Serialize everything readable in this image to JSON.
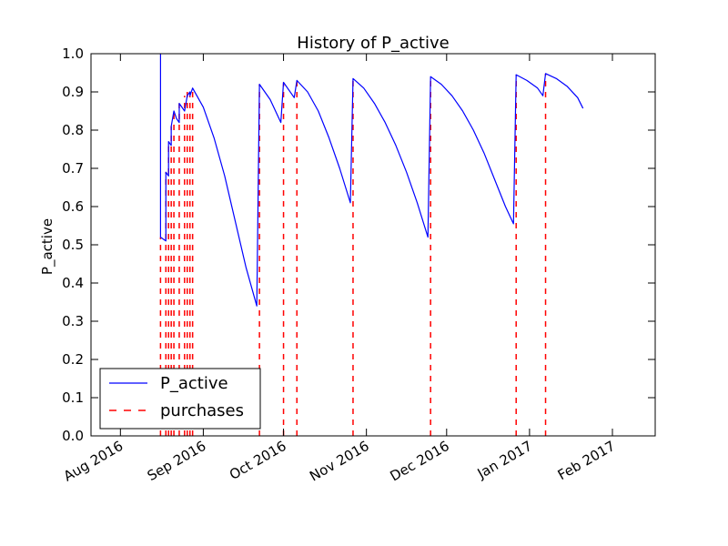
{
  "chart_data": {
    "type": "line",
    "title": "History of P_active",
    "xlabel": "",
    "ylabel": "P_active",
    "ylim": [
      0.0,
      1.0
    ],
    "xlim": [
      "2016-07-21",
      "2017-02-17"
    ],
    "y_ticks": [
      "0.0",
      "0.1",
      "0.2",
      "0.3",
      "0.4",
      "0.5",
      "0.6",
      "0.7",
      "0.8",
      "0.9",
      "1.0"
    ],
    "x_ticks": [
      {
        "date": "2016-08-01",
        "label": "Aug 2016"
      },
      {
        "date": "2016-09-01",
        "label": "Sep 2016"
      },
      {
        "date": "2016-10-01",
        "label": "Oct 2016"
      },
      {
        "date": "2016-11-01",
        "label": "Nov 2016"
      },
      {
        "date": "2016-12-01",
        "label": "Dec 2016"
      },
      {
        "date": "2017-01-01",
        "label": "Jan 2017"
      },
      {
        "date": "2017-02-01",
        "label": "Feb 2017"
      }
    ],
    "grid": false,
    "legend_placement": "lower-left",
    "series": [
      {
        "name": "P_active",
        "style": "solid",
        "color": "#0000ff",
        "points": [
          [
            "2016-08-16",
            1.0
          ],
          [
            "2016-08-16",
            0.52
          ],
          [
            "2016-08-18",
            0.51
          ],
          [
            "2016-08-18",
            0.69
          ],
          [
            "2016-08-19",
            0.68
          ],
          [
            "2016-08-19",
            0.77
          ],
          [
            "2016-08-20",
            0.76
          ],
          [
            "2016-08-20",
            0.81
          ],
          [
            "2016-08-21",
            0.85
          ],
          [
            "2016-08-22",
            0.83
          ],
          [
            "2016-08-23",
            0.82
          ],
          [
            "2016-08-23",
            0.87
          ],
          [
            "2016-08-25",
            0.85
          ],
          [
            "2016-08-26",
            0.89
          ],
          [
            "2016-08-27",
            0.9
          ],
          [
            "2016-08-27",
            0.89
          ],
          [
            "2016-08-28",
            0.91
          ],
          [
            "2016-09-01",
            0.86
          ],
          [
            "2016-09-05",
            0.78
          ],
          [
            "2016-09-09",
            0.68
          ],
          [
            "2016-09-13",
            0.56
          ],
          [
            "2016-09-17",
            0.44
          ],
          [
            "2016-09-21",
            0.34
          ],
          [
            "2016-09-22",
            0.92
          ],
          [
            "2016-09-26",
            0.88
          ],
          [
            "2016-09-30",
            0.82
          ],
          [
            "2016-10-01",
            0.925
          ],
          [
            "2016-10-05",
            0.885
          ],
          [
            "2016-10-06",
            0.93
          ],
          [
            "2016-10-10",
            0.9
          ],
          [
            "2016-10-14",
            0.85
          ],
          [
            "2016-10-18",
            0.78
          ],
          [
            "2016-10-22",
            0.7
          ],
          [
            "2016-10-26",
            0.61
          ],
          [
            "2016-10-27",
            0.935
          ],
          [
            "2016-10-31",
            0.91
          ],
          [
            "2016-11-04",
            0.87
          ],
          [
            "2016-11-08",
            0.82
          ],
          [
            "2016-11-12",
            0.76
          ],
          [
            "2016-11-16",
            0.69
          ],
          [
            "2016-11-20",
            0.61
          ],
          [
            "2016-11-24",
            0.52
          ],
          [
            "2016-11-25",
            0.94
          ],
          [
            "2016-11-29",
            0.92
          ],
          [
            "2016-12-03",
            0.89
          ],
          [
            "2016-12-07",
            0.85
          ],
          [
            "2016-12-11",
            0.8
          ],
          [
            "2016-12-15",
            0.74
          ],
          [
            "2016-12-19",
            0.67
          ],
          [
            "2016-12-23",
            0.6
          ],
          [
            "2016-12-26",
            0.555
          ],
          [
            "2016-12-27",
            0.945
          ],
          [
            "2016-12-31",
            0.93
          ],
          [
            "2017-01-04",
            0.91
          ],
          [
            "2017-01-06",
            0.89
          ],
          [
            "2017-01-07",
            0.948
          ],
          [
            "2017-01-11",
            0.935
          ],
          [
            "2017-01-15",
            0.915
          ],
          [
            "2017-01-19",
            0.885
          ],
          [
            "2017-01-21",
            0.857
          ]
        ]
      },
      {
        "name": "purchases",
        "style": "dashed",
        "color": "#ff0000",
        "dates": [
          "2016-08-16",
          "2016-08-18",
          "2016-08-19",
          "2016-08-20",
          "2016-08-21",
          "2016-08-23",
          "2016-08-25",
          "2016-08-26",
          "2016-08-27",
          "2016-08-28",
          "2016-09-22",
          "2016-10-01",
          "2016-10-06",
          "2016-10-27",
          "2016-11-25",
          "2016-12-27",
          "2017-01-07"
        ],
        "values": [
          0.52,
          0.69,
          0.77,
          0.81,
          0.85,
          0.87,
          0.89,
          0.9,
          0.89,
          0.91,
          0.92,
          0.925,
          0.93,
          0.935,
          0.94,
          0.945,
          0.948
        ]
      }
    ]
  }
}
